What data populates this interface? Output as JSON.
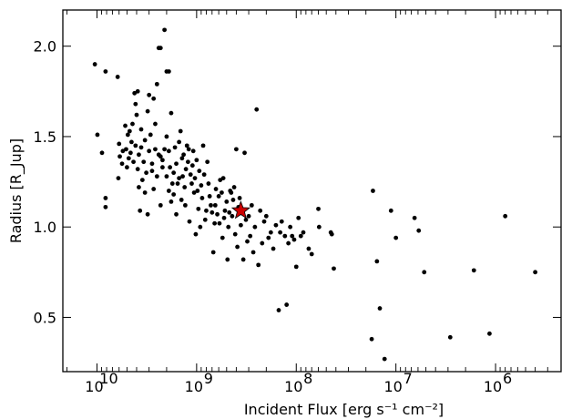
{
  "chart_data": {
    "type": "scatter",
    "xlabel": "Incident Flux [erg s⁻¹ cm⁻²]",
    "ylabel": "Radius [R_Jup]",
    "x_scale": "log",
    "x_inverted": true,
    "xlim": [
      22000000000.0,
      220000.0
    ],
    "ylim": [
      0.2,
      2.2
    ],
    "x_ticks": [
      {
        "value": 10000000000.0,
        "label": "10",
        "exponent": "10"
      },
      {
        "value": 1000000000.0,
        "label": "10",
        "exponent": "9"
      },
      {
        "value": 100000000.0,
        "label": "10",
        "exponent": "8"
      },
      {
        "value": 10000000.0,
        "label": "10",
        "exponent": "7"
      },
      {
        "value": 1000000.0,
        "label": "10",
        "exponent": "6"
      }
    ],
    "y_ticks": [
      {
        "value": 0.5,
        "label": "0.5"
      },
      {
        "value": 1.0,
        "label": "1.0"
      },
      {
        "value": 1.5,
        "label": "1.5"
      },
      {
        "value": 2.0,
        "label": "2.0"
      }
    ],
    "grid": false,
    "series": [
      {
        "marker": "dot",
        "color": "#000000",
        "points": [
          [
            10500000000.0,
            1.9
          ],
          [
            9900000000.0,
            1.51
          ],
          [
            8900000000.0,
            1.41
          ],
          [
            8200000000.0,
            1.16
          ],
          [
            8200000000.0,
            1.11
          ],
          [
            8200000000.0,
            1.86
          ],
          [
            6200000000.0,
            1.83
          ],
          [
            6100000000.0,
            1.27
          ],
          [
            6000000000.0,
            1.46
          ],
          [
            5900000000.0,
            1.39
          ],
          [
            5600000000.0,
            1.35
          ],
          [
            5500000000.0,
            1.42
          ],
          [
            5200000000.0,
            1.56
          ],
          [
            5100000000.0,
            1.43
          ],
          [
            5000000000.0,
            1.33
          ],
          [
            4900000000.0,
            1.51
          ],
          [
            4800000000.0,
            1.38
          ],
          [
            4700000000.0,
            1.53
          ],
          [
            4600000000.0,
            1.41
          ],
          [
            4500000000.0,
            1.47
          ],
          [
            4400000000.0,
            1.57
          ],
          [
            4300000000.0,
            1.36
          ],
          [
            4200000000.0,
            1.74
          ],
          [
            4100000000.0,
            1.68
          ],
          [
            4100000000.0,
            1.45
          ],
          [
            4000000000.0,
            1.62
          ],
          [
            3900000000.0,
            1.75
          ],
          [
            3900000000.0,
            1.32
          ],
          [
            3800000000.0,
            1.4
          ],
          [
            3800000000.0,
            1.22
          ],
          [
            3700000000.0,
            1.09
          ],
          [
            3600000000.0,
            1.54
          ],
          [
            3600000000.0,
            1.44
          ],
          [
            3500000000.0,
            1.26
          ],
          [
            3400000000.0,
            1.36
          ],
          [
            3300000000.0,
            1.48
          ],
          [
            3300000000.0,
            1.19
          ],
          [
            3200000000.0,
            1.3
          ],
          [
            3100000000.0,
            1.64
          ],
          [
            3100000000.0,
            1.07
          ],
          [
            3000000000.0,
            1.42
          ],
          [
            3000000000.0,
            1.73
          ],
          [
            2900000000.0,
            1.51
          ],
          [
            2800000000.0,
            1.31
          ],
          [
            2800000000.0,
            1.35
          ],
          [
            2700000000.0,
            1.71
          ],
          [
            2700000000.0,
            1.21
          ],
          [
            2600000000.0,
            1.57
          ],
          [
            2600000000.0,
            1.43
          ],
          [
            2500000000.0,
            1.79
          ],
          [
            2500000000.0,
            1.28
          ],
          [
            2400000000.0,
            1.4
          ],
          [
            2400000000.0,
            1.99
          ],
          [
            2300000000.0,
            1.39
          ],
          [
            2300000000.0,
            1.12
          ],
          [
            2300000000.0,
            1.99
          ],
          [
            2200000000.0,
            1.37
          ],
          [
            2200000000.0,
            1.33
          ],
          [
            2100000000.0,
            1.43
          ],
          [
            2100000000.0,
            2.09
          ],
          [
            2000000000.0,
            1.28
          ],
          [
            2000000000.0,
            1.86
          ],
          [
            2000000000.0,
            1.5
          ],
          [
            1900000000.0,
            1.42
          ],
          [
            1900000000.0,
            1.2
          ],
          [
            1900000000.0,
            1.86
          ],
          [
            1850000000.0,
            1.33
          ],
          [
            1800000000.0,
            1.14
          ],
          [
            1800000000.0,
            1.63
          ],
          [
            1750000000.0,
            1.24
          ],
          [
            1700000000.0,
            1.18
          ],
          [
            1700000000.0,
            1.3
          ],
          [
            1650000000.0,
            1.44
          ],
          [
            1600000000.0,
            1.35
          ],
          [
            1600000000.0,
            1.07
          ],
          [
            1550000000.0,
            1.24
          ],
          [
            1500000000.0,
            1.47
          ],
          [
            1500000000.0,
            1.27
          ],
          [
            1450000000.0,
            1.53
          ],
          [
            1420000000.0,
            1.15
          ],
          [
            1400000000.0,
            1.38
          ],
          [
            1380000000.0,
            1.28
          ],
          [
            1350000000.0,
            1.4
          ],
          [
            1320000000.0,
            1.22
          ],
          [
            1300000000.0,
            1.12
          ],
          [
            1280000000.0,
            1.32
          ],
          [
            1250000000.0,
            1.45
          ],
          [
            1220000000.0,
            1.36
          ],
          [
            1200000000.0,
            1.43
          ],
          [
            1180000000.0,
            1.03
          ],
          [
            1150000000.0,
            1.29
          ],
          [
            1120000000.0,
            1.24
          ],
          [
            1100000000.0,
            1.34
          ],
          [
            1080000000.0,
            1.42
          ],
          [
            1060000000.0,
            1.19
          ],
          [
            1040000000.0,
            1.27
          ],
          [
            1020000000.0,
            0.96
          ],
          [
            1000000000.0,
            1.37
          ],
          [
            980000000.0,
            1.2
          ],
          [
            960000000.0,
            1.1
          ],
          [
            940000000.0,
            1.31
          ],
          [
            920000000.0,
            1.0
          ],
          [
            900000000.0,
            1.23
          ],
          [
            880000000.0,
            1.16
          ],
          [
            860000000.0,
            1.45
          ],
          [
            840000000.0,
            1.29
          ],
          [
            820000000.0,
            1.04
          ],
          [
            800000000.0,
            1.09
          ],
          [
            780000000.0,
            1.36
          ],
          [
            760000000.0,
            1.24
          ],
          [
            740000000.0,
            1.17
          ],
          [
            720000000.0,
            1.12
          ],
          [
            700000000.0,
            1.08
          ],
          [
            680000000.0,
            0.86
          ],
          [
            660000000.0,
            1.02
          ],
          [
            650000000.0,
            1.12
          ],
          [
            640000000.0,
            1.21
          ],
          [
            620000000.0,
            1.07
          ],
          [
            600000000.0,
            1.17
          ],
          [
            590000000.0,
            1.02
          ],
          [
            580000000.0,
            1.26
          ],
          [
            560000000.0,
            1.19
          ],
          [
            550000000.0,
            0.94
          ],
          [
            540000000.0,
            1.27
          ],
          [
            530000000.0,
            1.05
          ],
          [
            520000000.0,
            1.09
          ],
          [
            500000000.0,
            1.14
          ],
          [
            490000000.0,
            0.82
          ],
          [
            480000000.0,
            1.0
          ],
          [
            470000000.0,
            1.08
          ],
          [
            460000000.0,
            1.2
          ],
          [
            450000000.0,
            1.19
          ],
          [
            440000000.0,
            1.06
          ],
          [
            430000000.0,
            1.15
          ],
          [
            420000000.0,
            1.22
          ],
          [
            410000000.0,
            0.96
          ],
          [
            400000000.0,
            1.43
          ],
          [
            390000000.0,
            0.89
          ],
          [
            380000000.0,
            1.11
          ],
          [
            370000000.0,
            1.16
          ],
          [
            360000000.0,
            1.01
          ],
          [
            350000000.0,
            1.1
          ],
          [
            340000000.0,
            0.82
          ],
          [
            330000000.0,
            1.41
          ],
          [
            320000000.0,
            1.04
          ],
          [
            310000000.0,
            0.92
          ],
          [
            300000000.0,
            1.06
          ],
          [
            290000000.0,
            0.95
          ],
          [
            280000000.0,
            1.12
          ],
          [
            270000000.0,
            0.86
          ],
          [
            260000000.0,
            1.0
          ],
          [
            250000000.0,
            1.65
          ],
          [
            240000000.0,
            0.79
          ],
          [
            230000000.0,
            1.09
          ],
          [
            220000000.0,
            0.91
          ],
          [
            210000000.0,
            1.03
          ],
          [
            200000000.0,
            1.06
          ],
          [
            190000000.0,
            0.94
          ],
          [
            180000000.0,
            0.97
          ],
          [
            170000000.0,
            0.88
          ],
          [
            160000000.0,
            1.01
          ],
          [
            150000000.0,
            0.54
          ],
          [
            145000000.0,
            0.97
          ],
          [
            140000000.0,
            1.03
          ],
          [
            130000000.0,
            0.95
          ],
          [
            125000000.0,
            0.57
          ],
          [
            120000000.0,
            0.91
          ],
          [
            115000000.0,
            1.0
          ],
          [
            110000000.0,
            0.95
          ],
          [
            105000000.0,
            0.93
          ],
          [
            100000000.0,
            0.78
          ],
          [
            95000000.0,
            1.05
          ],
          [
            90000000.0,
            0.95
          ],
          [
            85000000.0,
            0.97
          ],
          [
            75000000.0,
            0.88
          ],
          [
            70000000.0,
            0.85
          ],
          [
            60000000.0,
            1.1
          ],
          [
            59000000.0,
            1.0
          ],
          [
            45000000.0,
            0.97
          ],
          [
            44000000.0,
            0.96
          ],
          [
            42000000.0,
            0.77
          ],
          [
            17000000.0,
            1.2
          ],
          [
            17500000.0,
            0.38
          ],
          [
            15500000.0,
            0.81
          ],
          [
            14500000.0,
            0.55
          ],
          [
            13000000.0,
            0.27
          ],
          [
            11200000.0,
            1.09
          ],
          [
            10000000.0,
            0.94
          ],
          [
            6500000.0,
            1.05
          ],
          [
            5900000.0,
            0.98
          ],
          [
            5200000.0,
            0.75
          ],
          [
            2850000.0,
            0.39
          ],
          [
            1650000.0,
            0.76
          ],
          [
            1150000.0,
            0.41
          ],
          [
            800000.0,
            1.06
          ],
          [
            400000.0,
            0.75
          ]
        ]
      },
      {
        "marker": "star",
        "color": "#cc0000",
        "points": [
          [
            360000000.0,
            1.09
          ]
        ]
      }
    ]
  }
}
